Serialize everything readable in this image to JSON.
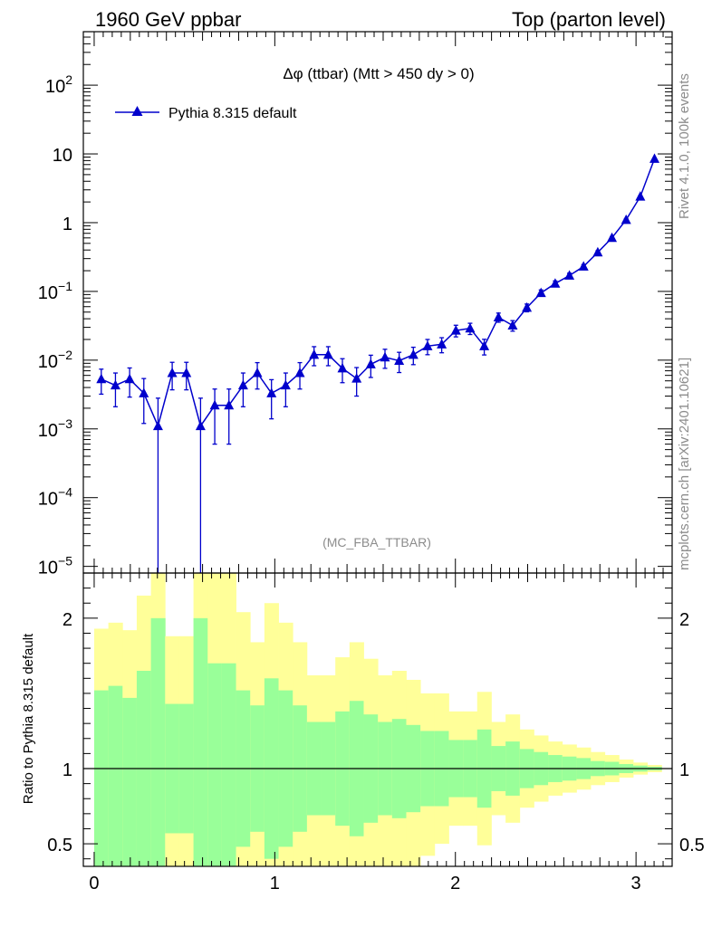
{
  "header": {
    "left": "1960 GeV ppbar",
    "right": "Top (parton level)"
  },
  "side": {
    "rivet": "Rivet 4.1.0,  100k events",
    "mcplots": "mcplots.cern.ch [arXiv:2401.10621]"
  },
  "chart_data": {
    "type": "line",
    "title": "Δφ (ttbar) (Mtt > 450 dy > 0)",
    "analysis_tag": "(MC_FBA_TTBAR)",
    "legend": [
      "Pythia 8.315 default"
    ],
    "xlim": [
      -0.06,
      3.2
    ],
    "ylim_log": [
      8e-06,
      600
    ],
    "x_ticks": [
      "0",
      "1",
      "2",
      "3"
    ],
    "y_ticks": [
      "10^-5",
      "10^-4",
      "10^-3",
      "10^-2",
      "10^-1",
      "1",
      "10",
      "10^2"
    ],
    "ratio": {
      "ylabel": "Ratio to Pythia 8.315 default",
      "ylim": [
        0.35,
        2.3
      ],
      "y_ticks": [
        "0.5",
        "1",
        "2"
      ]
    },
    "series": [
      {
        "name": "Pythia 8.315 default",
        "color": "#0000cc",
        "x": [
          0.0393,
          0.1178,
          0.1963,
          0.2749,
          0.3534,
          0.432,
          0.5105,
          0.589,
          0.6676,
          0.7461,
          0.8247,
          0.9032,
          0.9817,
          1.0603,
          1.1388,
          1.2174,
          1.2959,
          1.3744,
          1.453,
          1.5315,
          1.6101,
          1.6886,
          1.7671,
          1.8457,
          1.9242,
          2.0028,
          2.0813,
          2.1598,
          2.2384,
          2.3169,
          2.3955,
          2.474,
          2.5525,
          2.6311,
          2.7096,
          2.7882,
          2.8667,
          2.9452,
          3.0238,
          3.1023
        ],
        "y": [
          0.0053,
          0.0043,
          0.0053,
          0.0033,
          0.0011,
          0.0065,
          0.0065,
          0.0011,
          0.0022,
          0.0022,
          0.0043,
          0.0065,
          0.0033,
          0.0043,
          0.0065,
          0.012,
          0.012,
          0.0076,
          0.0054,
          0.0087,
          0.011,
          0.0098,
          0.012,
          0.016,
          0.017,
          0.027,
          0.029,
          0.016,
          0.042,
          0.032,
          0.058,
          0.095,
          0.13,
          0.17,
          0.23,
          0.37,
          0.6,
          1.1,
          2.4,
          8.5
        ],
        "err_up": [
          0.0021,
          0.0022,
          0.0024,
          0.0021,
          0.0017,
          0.0028,
          0.0028,
          0.0017,
          0.0016,
          0.0016,
          0.0022,
          0.0027,
          0.0019,
          0.0022,
          0.0027,
          0.0037,
          0.0037,
          0.0029,
          0.0024,
          0.0031,
          0.0034,
          0.0032,
          0.0034,
          0.004,
          0.0042,
          0.0052,
          0.0054,
          0.0041,
          0.0064,
          0.0056,
          0.0075,
          0.01,
          0.012,
          0.014,
          0.016,
          0.02,
          0.026,
          0.035,
          0.052,
          0.1
        ],
        "err_down": [
          0.0021,
          0.0022,
          0.0024,
          0.0021,
          0.0011,
          0.0028,
          0.0028,
          0.0011,
          0.0016,
          0.0016,
          0.0022,
          0.0027,
          0.0019,
          0.0022,
          0.0027,
          0.0037,
          0.0037,
          0.0029,
          0.0024,
          0.0031,
          0.0034,
          0.0032,
          0.0034,
          0.004,
          0.0042,
          0.0052,
          0.0054,
          0.0041,
          0.0064,
          0.0056,
          0.0075,
          0.01,
          0.012,
          0.014,
          0.016,
          0.02,
          0.026,
          0.035,
          0.052,
          0.1
        ]
      }
    ],
    "ratio_bands": {
      "bin_low": [
        0.0,
        0.0785,
        0.1571,
        0.2356,
        0.3142,
        0.3927,
        0.4712,
        0.5498,
        0.6283,
        0.7069,
        0.7854,
        0.8639,
        0.9425,
        1.021,
        1.0996,
        1.1781,
        1.2566,
        1.3352,
        1.4137,
        1.4923,
        1.5708,
        1.6493,
        1.7279,
        1.8064,
        1.885,
        1.9635,
        2.042,
        2.1206,
        2.1991,
        2.2777,
        2.3562,
        2.4347,
        2.5133,
        2.5918,
        2.6704,
        2.7489,
        2.8274,
        2.906,
        2.9845,
        3.0631
      ],
      "bin_high": [
        0.0785,
        0.1571,
        0.2356,
        0.3142,
        0.3927,
        0.4712,
        0.5498,
        0.6283,
        0.7069,
        0.7854,
        0.8639,
        0.9425,
        1.021,
        1.0996,
        1.1781,
        1.2566,
        1.3352,
        1.4137,
        1.4923,
        1.5708,
        1.6493,
        1.7279,
        1.8064,
        1.885,
        1.9635,
        2.042,
        2.1206,
        2.1991,
        2.2777,
        2.3562,
        2.4347,
        2.5133,
        2.5918,
        2.6704,
        2.7489,
        2.8274,
        2.906,
        2.9845,
        3.0631,
        3.1416
      ],
      "inner_up": [
        1.52,
        1.55,
        1.47,
        1.65,
        2.0,
        1.43,
        1.43,
        2.0,
        1.7,
        1.7,
        1.52,
        1.42,
        1.6,
        1.52,
        1.42,
        1.31,
        1.31,
        1.38,
        1.45,
        1.36,
        1.31,
        1.33,
        1.29,
        1.25,
        1.25,
        1.19,
        1.19,
        1.26,
        1.15,
        1.18,
        1.13,
        1.11,
        1.09,
        1.08,
        1.07,
        1.05,
        1.045,
        1.03,
        1.02,
        1.012
      ],
      "inner_down": [
        0.35,
        0.35,
        0.35,
        0.35,
        0.35,
        0.57,
        0.57,
        0.35,
        0.35,
        0.35,
        0.48,
        0.58,
        0.4,
        0.48,
        0.58,
        0.69,
        0.69,
        0.62,
        0.55,
        0.64,
        0.69,
        0.67,
        0.71,
        0.75,
        0.75,
        0.81,
        0.81,
        0.74,
        0.85,
        0.82,
        0.87,
        0.89,
        0.91,
        0.92,
        0.93,
        0.95,
        0.955,
        0.97,
        0.98,
        0.988
      ],
      "outer_up": [
        1.93,
        1.97,
        1.92,
        2.15,
        2.3,
        1.88,
        1.88,
        2.3,
        2.3,
        2.3,
        2.04,
        1.84,
        2.1,
        1.97,
        1.84,
        1.62,
        1.62,
        1.74,
        1.84,
        1.73,
        1.62,
        1.65,
        1.59,
        1.5,
        1.5,
        1.38,
        1.38,
        1.51,
        1.31,
        1.36,
        1.26,
        1.22,
        1.18,
        1.16,
        1.14,
        1.11,
        1.09,
        1.06,
        1.04,
        1.024
      ],
      "outer_down": [
        0.35,
        0.35,
        0.35,
        0.35,
        0.35,
        0.35,
        0.35,
        0.35,
        0.35,
        0.35,
        0.35,
        0.35,
        0.35,
        0.35,
        0.35,
        0.35,
        0.35,
        0.35,
        0.35,
        0.35,
        0.35,
        0.35,
        0.35,
        0.42,
        0.5,
        0.62,
        0.62,
        0.49,
        0.69,
        0.64,
        0.74,
        0.78,
        0.82,
        0.84,
        0.86,
        0.89,
        0.91,
        0.94,
        0.96,
        0.976
      ],
      "inner_color": "#99ff99",
      "outer_color": "#ffff99"
    }
  }
}
